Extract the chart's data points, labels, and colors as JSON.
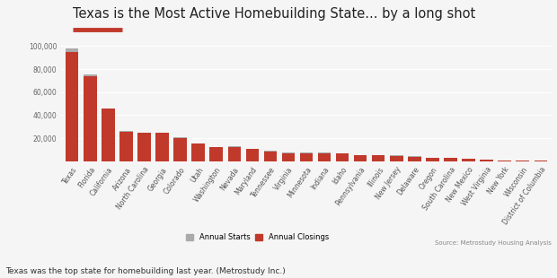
{
  "title": "Texas is the Most Active Homebuilding State... by a long shot",
  "subtitle_line_color": "#c0392b",
  "categories": [
    "Texas",
    "Florida",
    "California",
    "Arizona",
    "North Carolina",
    "Georgia",
    "Colorado",
    "Utah",
    "Washington",
    "Nevada",
    "Maryland",
    "Tennessee",
    "Virginia",
    "Minnesota",
    "Indiana",
    "Idaho",
    "Pennsylvania",
    "Illinois",
    "New Jersey",
    "Delaware",
    "Oregon",
    "South Carolina",
    "New Mexico",
    "West Virginia",
    "New York",
    "Wisconsin",
    "District of Columbia"
  ],
  "starts": [
    98000,
    75000,
    0,
    26000,
    25000,
    25000,
    21000,
    15000,
    12500,
    13000,
    11000,
    9000,
    8000,
    7500,
    7500,
    7000,
    5500,
    5500,
    5000,
    4500,
    3000,
    3000,
    2000,
    1500,
    1000,
    700,
    500
  ],
  "closings": [
    95000,
    74000,
    46000,
    25500,
    25000,
    24500,
    20000,
    15500,
    12000,
    12500,
    10500,
    8500,
    7000,
    7000,
    7000,
    6500,
    5000,
    5200,
    4800,
    4000,
    2800,
    2800,
    1800,
    1200,
    800,
    500,
    400
  ],
  "starts_color": "#aaaaaa",
  "closings_color": "#c0392b",
  "ylim": [
    0,
    105000
  ],
  "yticks": [
    0,
    20000,
    40000,
    60000,
    80000,
    100000
  ],
  "ytick_labels": [
    "0",
    "20,000",
    "40,000",
    "60,000",
    "80,000",
    "100,000"
  ],
  "background_color": "#f5f5f5",
  "legend_starts_label": "Annual Starts",
  "legend_closings_label": "Annual Closings",
  "source_text": "Source: Metrostudy Housing Analysis",
  "footnote": "Texas was the top state for homebuilding last year. (Metrostudy Inc.)",
  "title_fontsize": 10.5,
  "tick_fontsize": 5.5,
  "bar_width": 0.72
}
